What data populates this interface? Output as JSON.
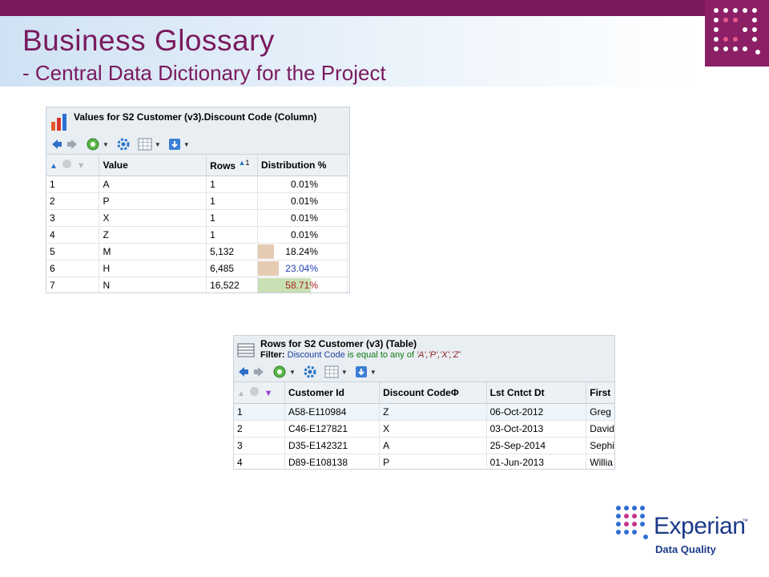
{
  "slide": {
    "title": "Business Glossary",
    "subtitle": "- Central Data Dictionary for the Project"
  },
  "values_panel": {
    "title": "Values for S2 Customer (v3).Discount Code (Column)",
    "columns": [
      "Value",
      "Rows",
      "Distribution %"
    ],
    "sort_indicator": "1",
    "rows": [
      {
        "n": "1",
        "value": "A",
        "rows": "1",
        "dist": "0.01%",
        "pct": 0.0001
      },
      {
        "n": "2",
        "value": "P",
        "rows": "1",
        "dist": "0.01%",
        "pct": 0.0001
      },
      {
        "n": "3",
        "value": "X",
        "rows": "1",
        "dist": "0.01%",
        "pct": 0.0001
      },
      {
        "n": "4",
        "value": "Z",
        "rows": "1",
        "dist": "0.01%",
        "pct": 0.0001
      },
      {
        "n": "5",
        "value": "M",
        "rows": "5,132",
        "dist": "18.24%",
        "pct": 0.1824
      },
      {
        "n": "6",
        "value": "H",
        "rows": "6,485",
        "dist": "23.04%",
        "pct": 0.2304
      },
      {
        "n": "7",
        "value": "N",
        "rows": "16,522",
        "dist": "58.71%",
        "pct": 0.5871
      }
    ]
  },
  "rows_panel": {
    "title": "Rows for S2 Customer (v3) (Table)",
    "filter_label": "Filter:",
    "filter_column": "Discount Code",
    "filter_op": "is equal to any of",
    "filter_values": "'A','P','X','Z'",
    "columns": [
      "Customer Id",
      "Discount CodeΦ",
      "Lst Cntct Dt",
      "First"
    ],
    "rows": [
      {
        "n": "1",
        "customer_id": "A58-E110984",
        "discount_code": "Z",
        "lst_cntct_dt": "06-Oct-2012",
        "first": "Greg"
      },
      {
        "n": "2",
        "customer_id": "C46-E127821",
        "discount_code": "X",
        "lst_cntct_dt": "03-Oct-2013",
        "first": "David"
      },
      {
        "n": "3",
        "customer_id": "D35-E142321",
        "discount_code": "A",
        "lst_cntct_dt": "25-Sep-2014",
        "first": "Sephi"
      },
      {
        "n": "4",
        "customer_id": "D89-E108138",
        "discount_code": "P",
        "lst_cntct_dt": "01-Jun-2013",
        "first": "Willia"
      }
    ]
  },
  "branding": {
    "company": "Experian",
    "trademark": "™",
    "division": "Data Quality"
  },
  "colors": {
    "brand_purple": "#7a1a5e",
    "brand_blue": "#1c3a8a",
    "bar_tan": "#e6cbb3",
    "bar_green": "#c9e0b4",
    "dist_blue": "#1f3fb0",
    "dist_red": "#a3231c"
  },
  "icons": {
    "back": "back-arrow-icon",
    "forward": "forward-arrow-icon",
    "refresh": "globe-refresh-icon",
    "settings": "gear-icon",
    "grid": "grid-icon",
    "export": "download-icon",
    "sort": "sort-ascending-icon",
    "filter": "filter-funnel-icon",
    "chart": "bar-chart-icon",
    "table": "table-icon"
  }
}
